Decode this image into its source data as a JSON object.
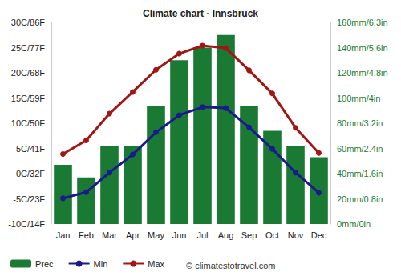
{
  "chart_data": {
    "type": "bar",
    "title": "Climate chart - Innsbruck",
    "annotation": "© climatestotravel.com",
    "categories": [
      "Jan",
      "Feb",
      "Mar",
      "Apr",
      "May",
      "Jun",
      "Jul",
      "Aug",
      "Sep",
      "Oct",
      "Nov",
      "Dec"
    ],
    "series": [
      {
        "name": "Prec",
        "type": "bar",
        "axis": "y2",
        "color": "#1a7a34",
        "values": [
          47,
          37,
          62,
          62,
          94,
          130,
          140,
          150,
          94,
          74,
          62,
          53
        ]
      },
      {
        "name": "Min",
        "type": "line",
        "color": "#1a1a8c",
        "marker": "circle",
        "values": [
          -4.9,
          -3.7,
          0.2,
          3.8,
          8.2,
          11.6,
          13.2,
          13.0,
          9.2,
          4.9,
          0.2,
          -3.8
        ]
      },
      {
        "name": "Max",
        "type": "line",
        "color": "#a31515",
        "marker": "circle",
        "values": [
          3.9,
          6.6,
          11.9,
          16.2,
          20.6,
          23.8,
          25.4,
          24.9,
          20.5,
          15.9,
          9.1,
          4.1
        ]
      }
    ],
    "ylim": [
      -10,
      30
    ],
    "yticks": [
      {
        "value": -10,
        "label": "-10C/14F"
      },
      {
        "value": -5,
        "label": "-5C/23F"
      },
      {
        "value": 0,
        "label": "0C/32F"
      },
      {
        "value": 5,
        "label": "5C/41F"
      },
      {
        "value": 10,
        "label": "10C/50F"
      },
      {
        "value": 15,
        "label": "15C/59F"
      },
      {
        "value": 20,
        "label": "20C/68F"
      },
      {
        "value": 25,
        "label": "25C/77F"
      },
      {
        "value": 30,
        "label": "30C/86F"
      }
    ],
    "y2lim": [
      0,
      160
    ],
    "y2ticks": [
      {
        "value": 0,
        "label": "0mm/0in"
      },
      {
        "value": 20,
        "label": "20mm/0.8in"
      },
      {
        "value": 40,
        "label": "40mm/1.6in"
      },
      {
        "value": 60,
        "label": "60mm/2.4in"
      },
      {
        "value": 80,
        "label": "80mm/3.2in"
      },
      {
        "value": 100,
        "label": "100mm/4in"
      },
      {
        "value": 120,
        "label": "120mm/4.8in"
      },
      {
        "value": 140,
        "label": "140mm/5.6in"
      },
      {
        "value": 160,
        "label": "160mm/6.3in"
      }
    ],
    "grid": false,
    "legend": "bottom"
  }
}
